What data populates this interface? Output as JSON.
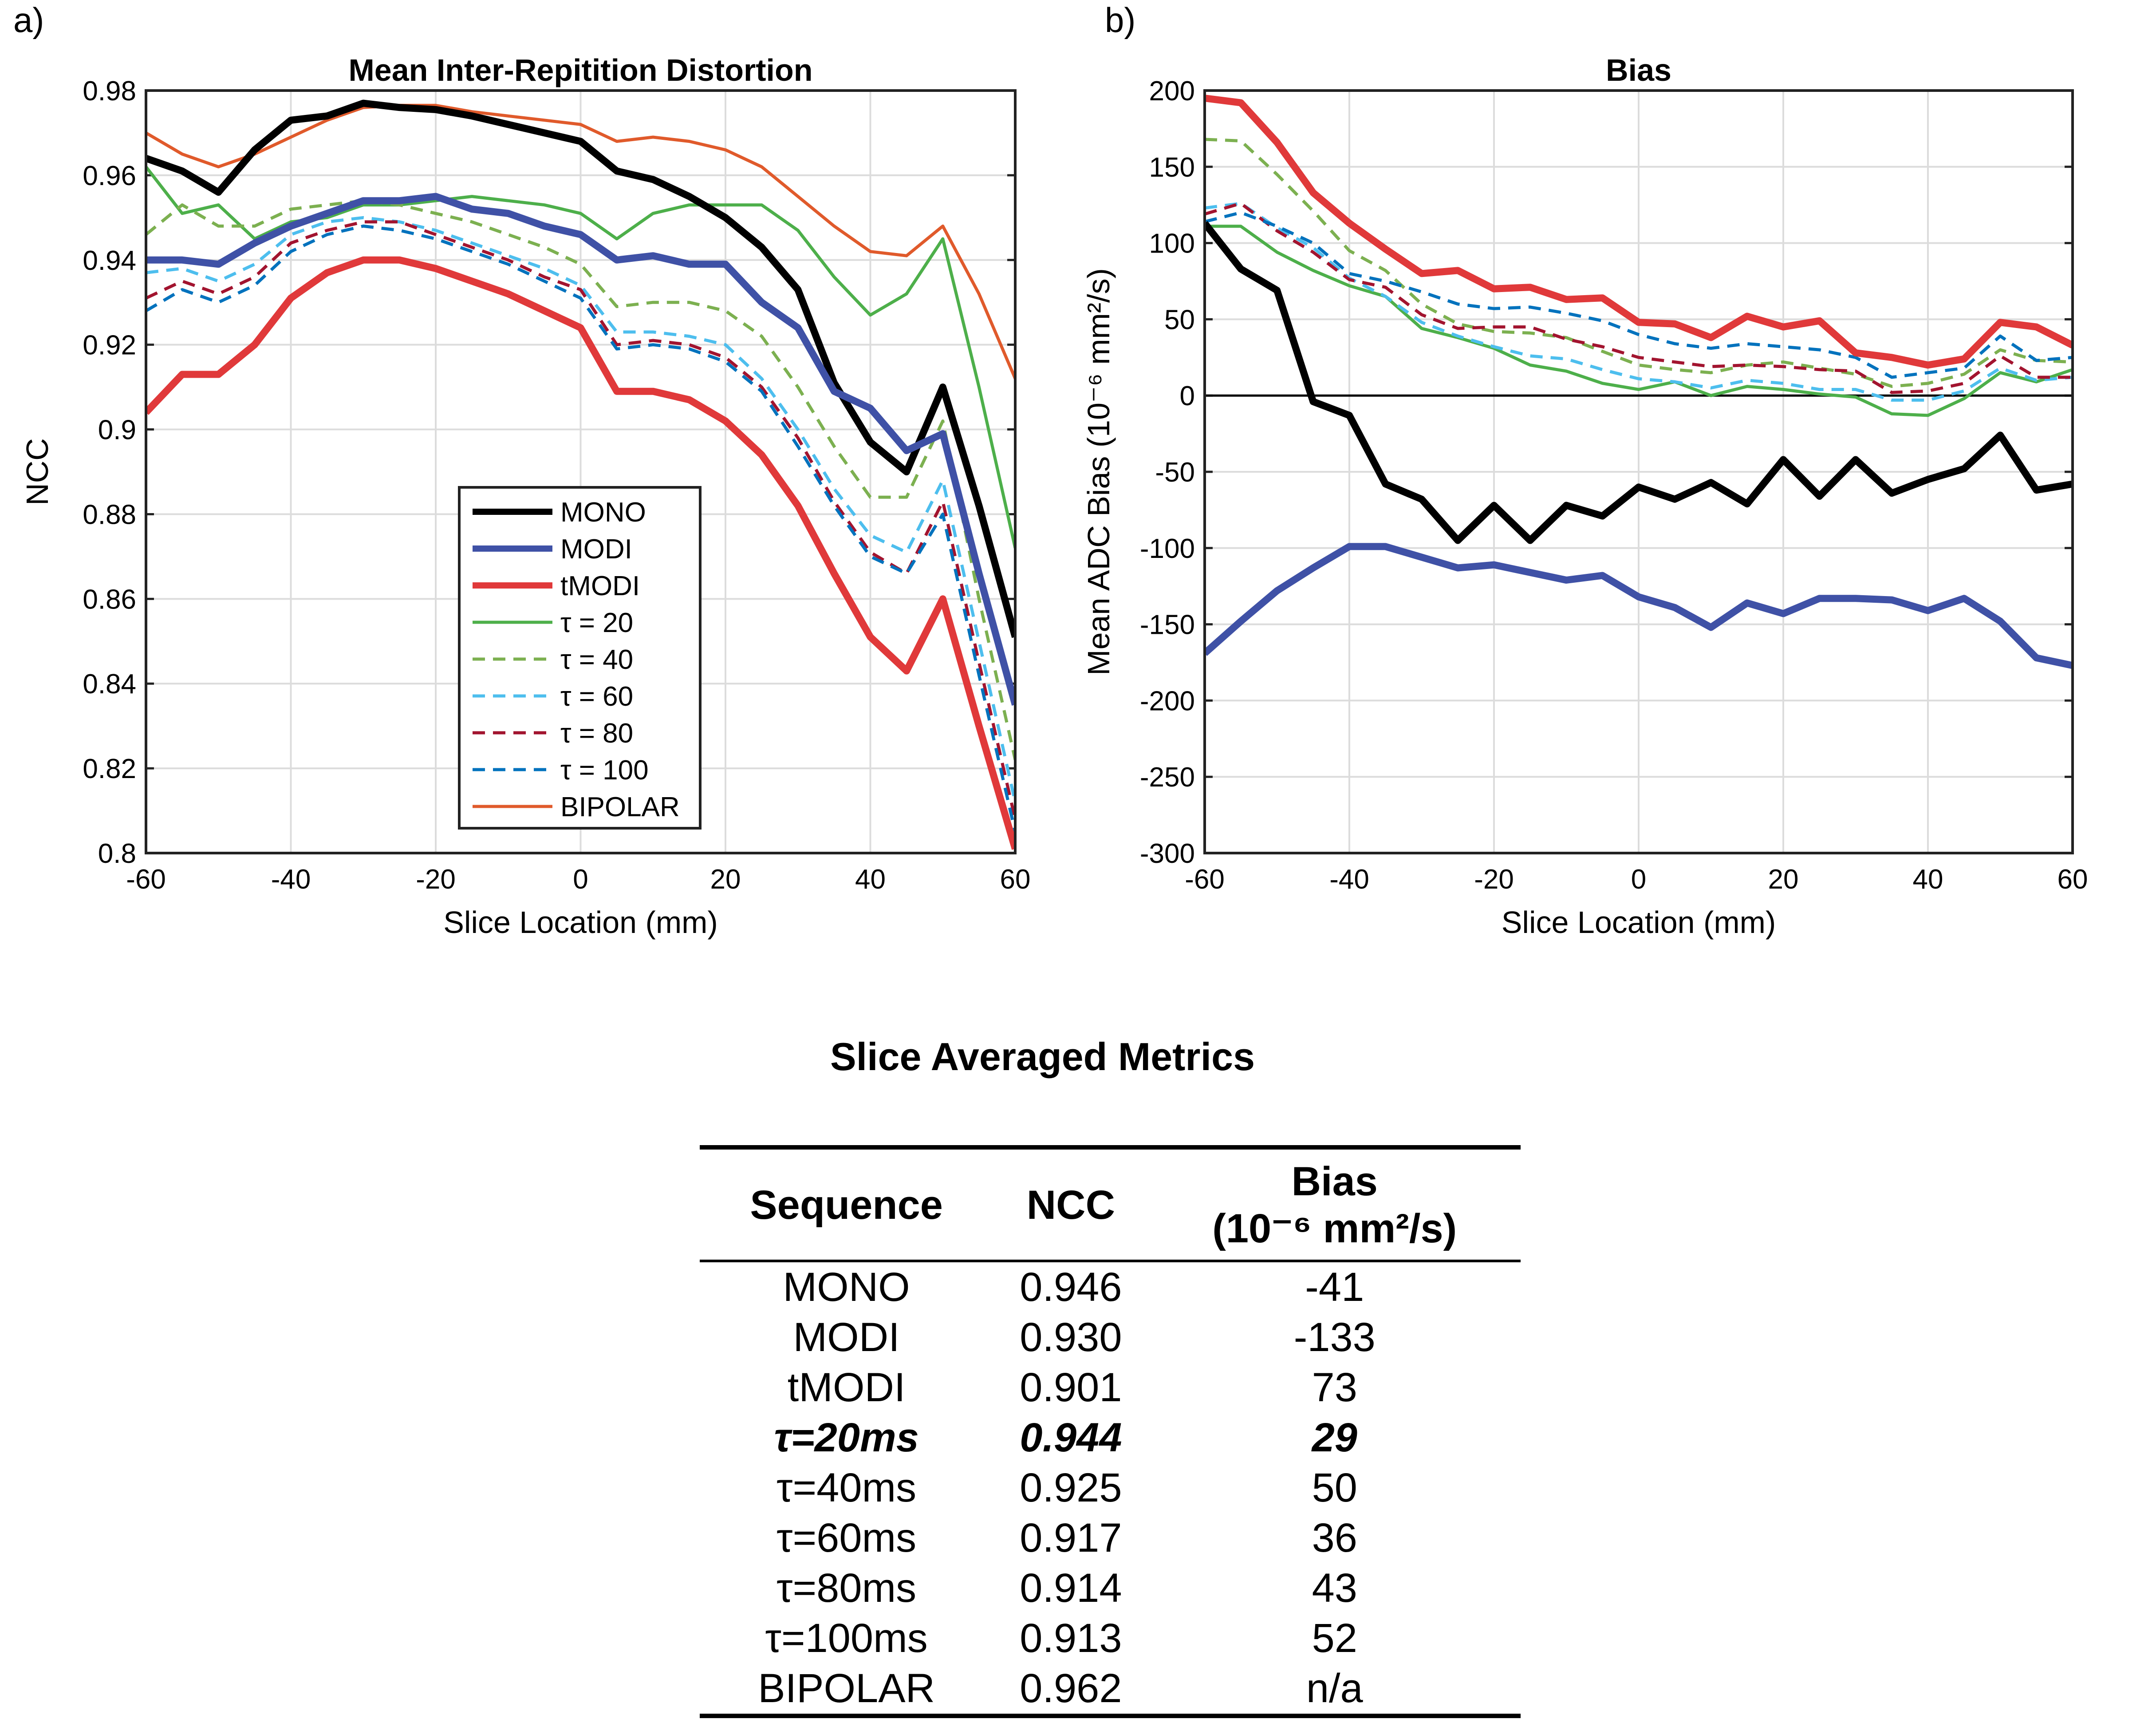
{
  "panels": {
    "a": "a)",
    "b": "b)"
  },
  "chart_data": [
    {
      "type": "line",
      "title": "Mean Inter-Repitition Distortion",
      "xlabel": "Slice Location (mm)",
      "ylabel": "NCC",
      "xlim": [
        -60,
        60
      ],
      "ylim": [
        0.8,
        0.98
      ],
      "xticks": [
        -60,
        -40,
        -20,
        0,
        20,
        40,
        60
      ],
      "yticks": [
        0.8,
        0.82,
        0.84,
        0.86,
        0.88,
        0.9,
        0.92,
        0.94,
        0.96,
        0.98
      ],
      "grid": true,
      "legend": "bottom-center",
      "x": [
        -60,
        -55,
        -50,
        -45,
        -40,
        -35,
        -30,
        -25,
        -20,
        -15,
        -10,
        -5,
        0,
        5,
        10,
        15,
        20,
        25,
        30,
        35,
        40,
        45,
        50,
        55,
        60
      ],
      "series": [
        {
          "name": "MONO",
          "color": "#000000",
          "style": "solid",
          "width": "thick",
          "values": [
            0.964,
            0.961,
            0.956,
            0.966,
            0.973,
            0.974,
            0.977,
            0.976,
            0.9755,
            0.974,
            0.972,
            0.97,
            0.968,
            0.961,
            0.959,
            0.955,
            0.95,
            0.943,
            0.933,
            0.911,
            0.897,
            0.89,
            0.91,
            0.882,
            0.851
          ]
        },
        {
          "name": "MODI",
          "color": "#3f51a6",
          "style": "solid",
          "width": "thick",
          "values": [
            0.94,
            0.94,
            0.939,
            0.944,
            0.948,
            0.951,
            0.954,
            0.954,
            0.955,
            0.952,
            0.951,
            0.948,
            0.946,
            0.94,
            0.941,
            0.939,
            0.939,
            0.93,
            0.924,
            0.909,
            0.905,
            0.895,
            0.899,
            0.866,
            0.835
          ]
        },
        {
          "name": "tMODI",
          "color": "#e0393a",
          "style": "solid",
          "width": "thick",
          "values": [
            0.904,
            0.913,
            0.913,
            0.92,
            0.931,
            0.937,
            0.94,
            0.94,
            0.938,
            0.935,
            0.932,
            0.928,
            0.924,
            0.909,
            0.909,
            0.907,
            0.902,
            0.894,
            0.882,
            0.866,
            0.851,
            0.843,
            0.86,
            0.83,
            0.801
          ]
        },
        {
          "name": "τ = 20",
          "color": "#4daf4a",
          "style": "solid",
          "width": "thin",
          "values": [
            0.962,
            0.951,
            0.953,
            0.945,
            0.949,
            0.95,
            0.953,
            0.953,
            0.954,
            0.955,
            0.954,
            0.953,
            0.951,
            0.945,
            0.951,
            0.953,
            0.953,
            0.953,
            0.947,
            0.936,
            0.927,
            0.932,
            0.945,
            0.91,
            0.872
          ]
        },
        {
          "name": "τ = 40",
          "color": "#7cb050",
          "style": "dashed",
          "width": "thin",
          "values": [
            0.946,
            0.953,
            0.948,
            0.948,
            0.952,
            0.953,
            0.954,
            0.953,
            0.951,
            0.949,
            0.946,
            0.943,
            0.939,
            0.929,
            0.93,
            0.93,
            0.928,
            0.922,
            0.91,
            0.896,
            0.884,
            0.884,
            0.902,
            0.86,
            0.822
          ]
        },
        {
          "name": "τ = 60",
          "color": "#4dbeee",
          "style": "dashed",
          "width": "thin",
          "values": [
            0.937,
            0.938,
            0.935,
            0.939,
            0.946,
            0.949,
            0.95,
            0.949,
            0.947,
            0.944,
            0.941,
            0.938,
            0.934,
            0.923,
            0.923,
            0.922,
            0.92,
            0.912,
            0.9,
            0.886,
            0.875,
            0.871,
            0.888,
            0.85,
            0.812
          ]
        },
        {
          "name": "τ = 80",
          "color": "#a2142f",
          "style": "dashed",
          "width": "thin",
          "values": [
            0.931,
            0.935,
            0.932,
            0.936,
            0.944,
            0.947,
            0.949,
            0.949,
            0.946,
            0.943,
            0.94,
            0.936,
            0.933,
            0.92,
            0.921,
            0.92,
            0.917,
            0.91,
            0.898,
            0.883,
            0.871,
            0.866,
            0.883,
            0.845,
            0.808
          ]
        },
        {
          "name": "τ = 100",
          "color": "#0072bd",
          "style": "dashed",
          "width": "thin",
          "values": [
            0.928,
            0.933,
            0.93,
            0.934,
            0.942,
            0.946,
            0.948,
            0.947,
            0.945,
            0.942,
            0.939,
            0.935,
            0.931,
            0.919,
            0.92,
            0.919,
            0.916,
            0.909,
            0.896,
            0.882,
            0.87,
            0.866,
            0.88,
            0.842,
            0.805
          ]
        },
        {
          "name": "BIPOLAR",
          "color": "#e05a2b",
          "style": "solid",
          "width": "thin",
          "values": [
            0.97,
            0.965,
            0.962,
            0.965,
            0.969,
            0.973,
            0.976,
            0.9765,
            0.9765,
            0.975,
            0.974,
            0.973,
            0.972,
            0.968,
            0.969,
            0.968,
            0.966,
            0.962,
            0.955,
            0.948,
            0.942,
            0.941,
            0.948,
            0.932,
            0.912
          ]
        }
      ]
    },
    {
      "type": "line",
      "title": "Bias",
      "xlabel": "Slice Location (mm)",
      "ylabel": "Mean ADC Bias (10⁻⁶ mm²/s)",
      "xlim": [
        -60,
        60
      ],
      "ylim": [
        -300,
        200
      ],
      "xticks": [
        -60,
        -40,
        -20,
        0,
        20,
        40,
        60
      ],
      "yticks": [
        -300,
        -250,
        -200,
        -150,
        -100,
        -50,
        0,
        50,
        100,
        150,
        200
      ],
      "grid": true,
      "zero_line": true,
      "x": [
        -60,
        -55,
        -50,
        -45,
        -40,
        -35,
        -30,
        -25,
        -20,
        -15,
        -10,
        -5,
        0,
        5,
        10,
        15,
        20,
        25,
        30,
        35,
        40,
        45,
        50,
        55,
        60
      ],
      "series": [
        {
          "color": "#000000",
          "style": "solid",
          "width": "thick",
          "values": [
            113,
            83,
            69,
            -4,
            -13,
            -58,
            -68,
            -95,
            -72,
            -95,
            -72,
            -79,
            -60,
            -68,
            -57,
            -71,
            -42,
            -66,
            -42,
            -64,
            -55,
            -48,
            -26,
            -62,
            -58
          ]
        },
        {
          "color": "#3f51a6",
          "style": "solid",
          "width": "thick",
          "values": [
            -169,
            -148,
            -128,
            -113,
            -99,
            -99,
            -106,
            -113,
            -111,
            -116,
            -121,
            -118,
            -132,
            -139,
            -152,
            -136,
            -143,
            -133,
            -133,
            -134,
            -141,
            -133,
            -148,
            -172,
            -177
          ]
        },
        {
          "color": "#e0393a",
          "style": "solid",
          "width": "thick",
          "values": [
            195,
            192,
            166,
            133,
            113,
            96,
            80,
            82,
            70,
            71,
            63,
            64,
            48,
            47,
            38,
            52,
            45,
            49,
            28,
            25,
            20,
            24,
            48,
            45,
            33
          ]
        },
        {
          "color": "#4daf4a",
          "style": "solid",
          "width": "thin",
          "values": [
            111,
            111,
            94,
            82,
            72,
            65,
            44,
            38,
            31,
            20,
            16,
            8,
            4,
            9,
            0,
            6,
            4,
            1,
            -1,
            -12,
            -13,
            -2,
            15,
            9,
            17
          ]
        },
        {
          "color": "#7cb050",
          "style": "dashed",
          "width": "thin",
          "values": [
            168,
            167,
            145,
            121,
            95,
            82,
            60,
            47,
            42,
            41,
            38,
            29,
            20,
            17,
            15,
            20,
            22,
            18,
            14,
            6,
            8,
            14,
            30,
            23,
            22
          ]
        },
        {
          "color": "#4dbeee",
          "style": "dashed",
          "width": "thin",
          "values": [
            123,
            126,
            110,
            97,
            77,
            65,
            48,
            39,
            32,
            26,
            24,
            17,
            11,
            9,
            5,
            10,
            8,
            4,
            4,
            -3,
            -3,
            3,
            18,
            10,
            12
          ]
        },
        {
          "color": "#a2142f",
          "style": "dashed",
          "width": "thin",
          "values": [
            119,
            126,
            108,
            94,
            76,
            71,
            53,
            44,
            45,
            45,
            37,
            32,
            25,
            22,
            19,
            20,
            19,
            17,
            16,
            2,
            3,
            8,
            26,
            12,
            12
          ]
        },
        {
          "color": "#0072bd",
          "style": "dashed",
          "width": "thin",
          "values": [
            114,
            120,
            111,
            100,
            80,
            75,
            68,
            60,
            57,
            58,
            54,
            49,
            40,
            34,
            31,
            34,
            32,
            30,
            25,
            12,
            15,
            18,
            39,
            23,
            25
          ]
        }
      ]
    }
  ],
  "table": {
    "title": "Slice Averaged Metrics",
    "headers": {
      "sequence": "Sequence",
      "ncc": "NCC",
      "bias_line1": "Bias",
      "bias_line2": "(10⁻⁶ mm²/s)"
    },
    "rows": [
      {
        "sequence": "MONO",
        "ncc": "0.946",
        "bias": "-41"
      },
      {
        "sequence": "MODI",
        "ncc": "0.930",
        "bias": "-133"
      },
      {
        "sequence": "tMODI",
        "ncc": "0.901",
        "bias": "73"
      },
      {
        "sequence": "τ=20ms",
        "ncc": "0.944",
        "bias": "29",
        "highlight": true
      },
      {
        "sequence": "τ=40ms",
        "ncc": "0.925",
        "bias": "50"
      },
      {
        "sequence": "τ=60ms",
        "ncc": "0.917",
        "bias": "36"
      },
      {
        "sequence": "τ=80ms",
        "ncc": "0.914",
        "bias": "43"
      },
      {
        "sequence": "τ=100ms",
        "ncc": "0.913",
        "bias": "52"
      },
      {
        "sequence": "BIPOLAR",
        "ncc": "0.962",
        "bias": "n/a"
      }
    ]
  }
}
